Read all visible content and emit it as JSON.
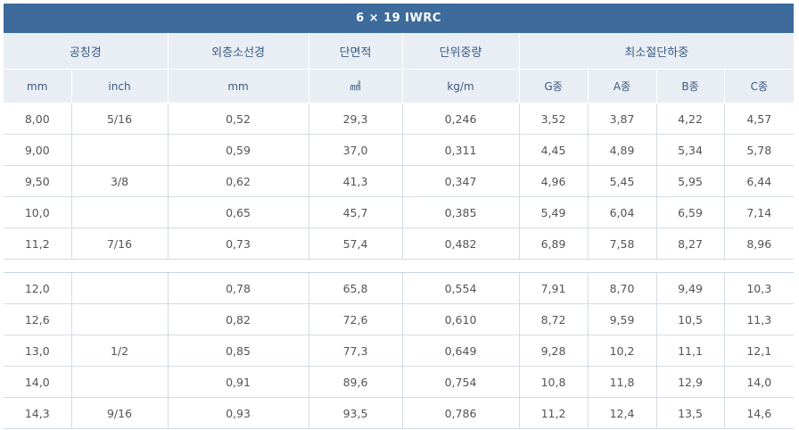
{
  "title": "6 × 19 IWRC",
  "headers": {
    "group": [
      "공칭경",
      "외층소선경",
      "단면적",
      "단위중량",
      "최소절단하중"
    ],
    "units": [
      "mm",
      "inch",
      "mm",
      "㎟",
      "kg/m",
      "G종",
      "A종",
      "B종",
      "C종"
    ]
  },
  "rows_a": [
    [
      "8,00",
      "5/16",
      "0,52",
      "29,3",
      "0,246",
      "3,52",
      "3,87",
      "4,22",
      "4,57"
    ],
    [
      "9,00",
      "",
      "0,59",
      "37,0",
      "0,311",
      "4,45",
      "4,89",
      "5,34",
      "5,78"
    ],
    [
      "9,50",
      "3/8",
      "0,62",
      "41,3",
      "0,347",
      "4,96",
      "5,45",
      "5,95",
      "6,44"
    ],
    [
      "10,0",
      "",
      "0,65",
      "45,7",
      "0,385",
      "5,49",
      "6,04",
      "6,59",
      "7,14"
    ],
    [
      "11,2",
      "7/16",
      "0,73",
      "57,4",
      "0,482",
      "6,89",
      "7,58",
      "8,27",
      "8,96"
    ]
  ],
  "rows_b": [
    [
      "12,0",
      "",
      "0,78",
      "65,8",
      "0,554",
      "7,91",
      "8,70",
      "9,49",
      "10,3"
    ],
    [
      "12,6",
      "",
      "0,82",
      "72,6",
      "0,610",
      "8,72",
      "9,59",
      "10,5",
      "11,3"
    ],
    [
      "13,0",
      "1/2",
      "0,85",
      "77,3",
      "0,649",
      "9,28",
      "10,2",
      "11,1",
      "12,1"
    ],
    [
      "14,0",
      "",
      "0,91",
      "89,6",
      "0,754",
      "10,8",
      "11,8",
      "12,9",
      "14,0"
    ],
    [
      "14,3",
      "9/16",
      "0,93",
      "93,5",
      "0,786",
      "11,2",
      "12,4",
      "13,5",
      "14,6"
    ]
  ]
}
